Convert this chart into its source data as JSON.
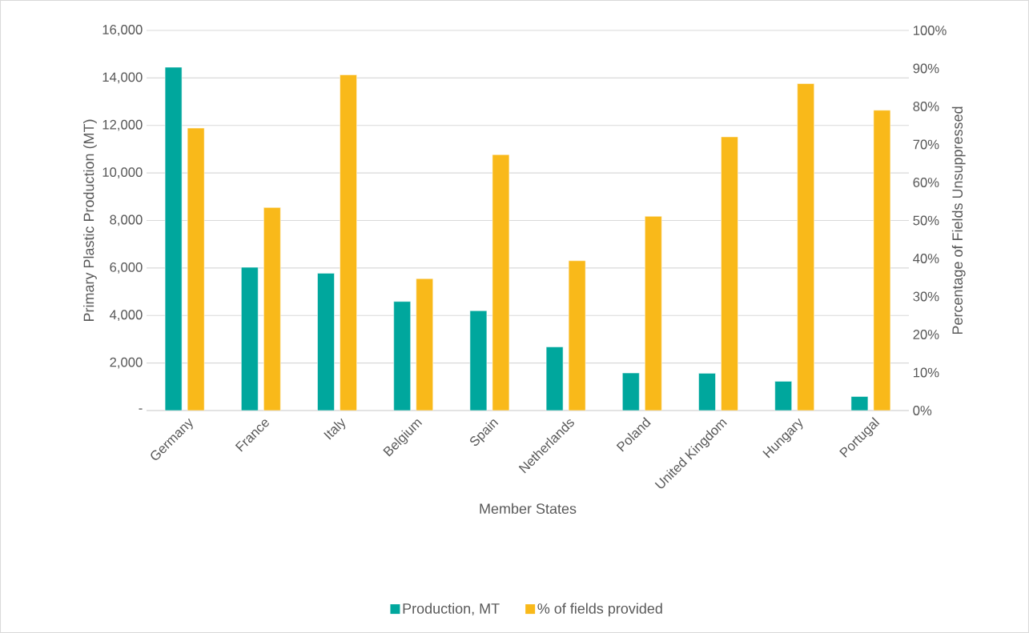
{
  "chart_data": {
    "type": "bar",
    "xlabel": "Member States",
    "ylabel": "Primary Plastic Production (MT)",
    "y2label": "Percentage of Fields Unsuppressed",
    "categories": [
      "Germany",
      "France",
      "Italy",
      "Belgium",
      "Spain",
      "Netherlands",
      "Poland",
      "United Kingdom",
      "Hungary",
      "Portugal"
    ],
    "series": [
      {
        "name": "Production, MT",
        "color": "#00a79d",
        "values": [
          14450,
          6030,
          5780,
          4590,
          4200,
          2680,
          1580,
          1570,
          1230,
          590
        ]
      },
      {
        "name": "% of fields provided",
        "color": "#f9b91a",
        "axis": "y2",
        "values": [
          74.3,
          53.4,
          88.3,
          34.7,
          67.3,
          39.4,
          51.1,
          72.0,
          86.0,
          79.0
        ]
      }
    ],
    "ylim": [
      0,
      16000
    ],
    "yticks": [
      {
        "value": 0,
        "label": "-"
      },
      {
        "value": 2000,
        "label": "2,000"
      },
      {
        "value": 4000,
        "label": "4,000"
      },
      {
        "value": 6000,
        "label": "6,000"
      },
      {
        "value": 8000,
        "label": "8,000"
      },
      {
        "value": 10000,
        "label": "10,000"
      },
      {
        "value": 12000,
        "label": "12,000"
      },
      {
        "value": 14000,
        "label": "14,000"
      },
      {
        "value": 16000,
        "label": "16,000"
      }
    ],
    "y2lim": [
      0,
      100
    ],
    "y2ticks": [
      {
        "value": 0,
        "label": "0%"
      },
      {
        "value": 10,
        "label": "10%"
      },
      {
        "value": 20,
        "label": "20%"
      },
      {
        "value": 30,
        "label": "30%"
      },
      {
        "value": 40,
        "label": "40%"
      },
      {
        "value": 50,
        "label": "50%"
      },
      {
        "value": 60,
        "label": "60%"
      },
      {
        "value": 70,
        "label": "70%"
      },
      {
        "value": 80,
        "label": "80%"
      },
      {
        "value": 90,
        "label": "90%"
      },
      {
        "value": 100,
        "label": "100%"
      }
    ],
    "grid": "y",
    "legend": "bottom"
  }
}
